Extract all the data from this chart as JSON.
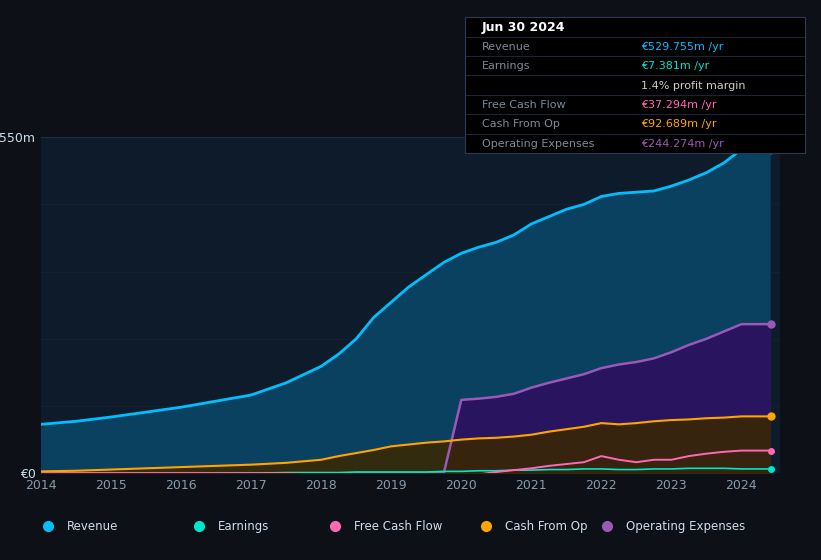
{
  "bg_color": "#0d1117",
  "plot_bg_color": "#0d1b2a",
  "title_date": "Jun 30 2024",
  "years": [
    2014.0,
    2014.5,
    2015.0,
    2015.5,
    2016.0,
    2016.5,
    2017.0,
    2017.5,
    2018.0,
    2018.25,
    2018.5,
    2018.75,
    2019.0,
    2019.25,
    2019.5,
    2019.75,
    2020.0,
    2020.25,
    2020.5,
    2020.75,
    2021.0,
    2021.25,
    2021.5,
    2021.75,
    2022.0,
    2022.25,
    2022.5,
    2022.75,
    2023.0,
    2023.25,
    2023.5,
    2023.75,
    2024.0,
    2024.4
  ],
  "revenue": [
    80,
    85,
    92,
    100,
    108,
    118,
    128,
    148,
    175,
    195,
    220,
    255,
    280,
    305,
    325,
    345,
    360,
    370,
    378,
    390,
    408,
    420,
    432,
    440,
    453,
    458,
    460,
    462,
    470,
    480,
    492,
    508,
    530,
    530
  ],
  "earnings": [
    -3,
    -3,
    -2,
    -2,
    -1,
    -1,
    0,
    1,
    1,
    1,
    2,
    2,
    2,
    2,
    2,
    3,
    3,
    4,
    4,
    5,
    5,
    6,
    6,
    7,
    7,
    6,
    6,
    7,
    7,
    8,
    8,
    8,
    7,
    7
  ],
  "free_cash_flow": [
    0,
    0,
    0,
    0,
    0,
    0,
    0,
    0,
    -3,
    -6,
    -8,
    -10,
    -12,
    -10,
    -7,
    -5,
    -5,
    -2,
    2,
    5,
    8,
    12,
    15,
    18,
    28,
    22,
    18,
    22,
    22,
    28,
    32,
    35,
    37,
    37
  ],
  "cash_from_op": [
    3,
    4,
    6,
    8,
    10,
    12,
    14,
    17,
    22,
    28,
    33,
    38,
    44,
    47,
    50,
    52,
    55,
    57,
    58,
    60,
    63,
    68,
    72,
    76,
    82,
    80,
    82,
    85,
    87,
    88,
    90,
    91,
    93,
    93
  ],
  "operating_expenses": [
    0,
    0,
    0,
    0,
    0,
    0,
    0,
    0,
    0,
    0,
    0,
    0,
    0,
    0,
    0,
    0,
    120,
    122,
    125,
    130,
    140,
    148,
    155,
    162,
    172,
    178,
    182,
    188,
    198,
    210,
    220,
    232,
    244,
    244
  ],
  "ylim": [
    0,
    550
  ],
  "xlim": [
    2014.0,
    2024.55
  ],
  "yticks": [
    0,
    550
  ],
  "xticks": [
    2014,
    2015,
    2016,
    2017,
    2018,
    2019,
    2020,
    2021,
    2022,
    2023,
    2024
  ],
  "revenue_color": "#00bfff",
  "revenue_fill": "#0a4060",
  "earnings_color": "#00e5cc",
  "fcf_color": "#ff69b4",
  "cashop_color": "#ffa500",
  "cashop_fill": "#3a2800",
  "opex_color": "#9b59b6",
  "opex_fill": "#2d1060",
  "xlabel_color": "#8899aa",
  "ylabel_color": "#ccddee",
  "grid_color_major": "#1e2e40",
  "grid_color_minor": "#162030",
  "legend": [
    {
      "label": "Revenue",
      "color": "#00bfff"
    },
    {
      "label": "Earnings",
      "color": "#00e5cc"
    },
    {
      "label": "Free Cash Flow",
      "color": "#ff69b4"
    },
    {
      "label": "Cash From Op",
      "color": "#ffa500"
    },
    {
      "label": "Operating Expenses",
      "color": "#9b59b6"
    }
  ],
  "info_rows": [
    {
      "label": "Jun 30 2024",
      "value": "",
      "label_color": "#ffffff",
      "value_color": "#ffffff",
      "is_title": true
    },
    {
      "label": "Revenue",
      "value": "€529.755m /yr",
      "label_color": "#7a8a9a",
      "value_color": "#00bfff",
      "is_title": false
    },
    {
      "label": "Earnings",
      "value": "€7.381m /yr",
      "label_color": "#7a8a9a",
      "value_color": "#00e5cc",
      "is_title": false
    },
    {
      "label": "",
      "value": "1.4% profit margin",
      "label_color": "#7a8a9a",
      "value_color": "#cccccc",
      "is_title": false
    },
    {
      "label": "Free Cash Flow",
      "value": "€37.294m /yr",
      "label_color": "#7a8a9a",
      "value_color": "#ff69b4",
      "is_title": false
    },
    {
      "label": "Cash From Op",
      "value": "€92.689m /yr",
      "label_color": "#7a8a9a",
      "value_color": "#ffa500",
      "is_title": false
    },
    {
      "label": "Operating Expenses",
      "value": "€244.274m /yr",
      "label_color": "#7a8a9a",
      "value_color": "#9b59b6",
      "is_title": false
    }
  ]
}
